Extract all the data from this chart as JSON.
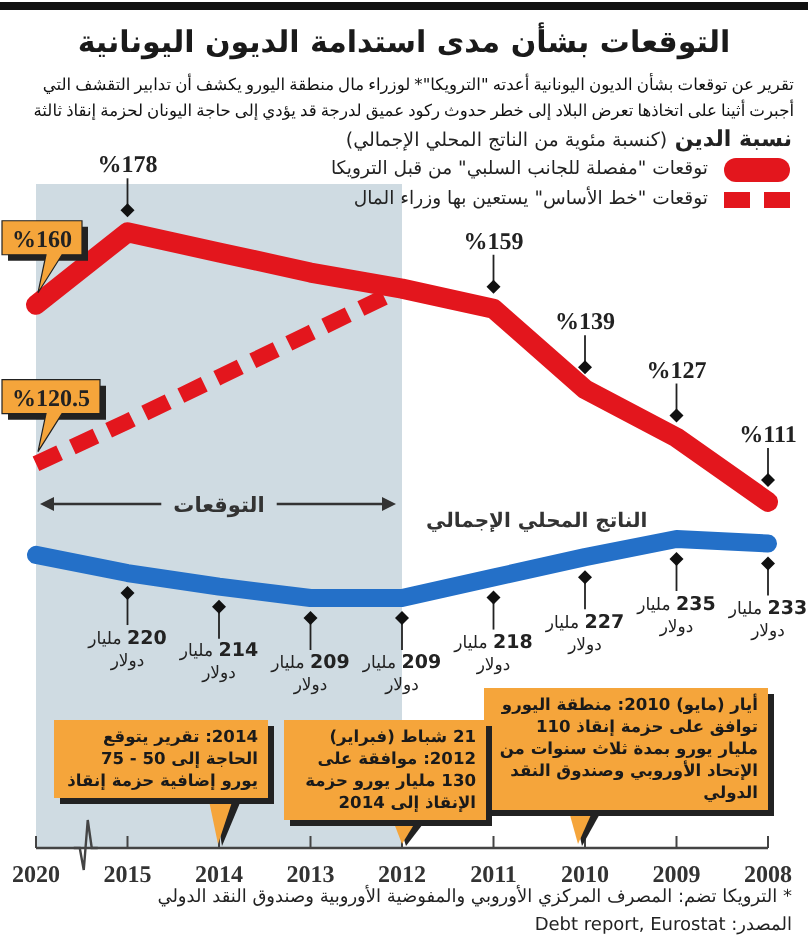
{
  "chart_data": {
    "type": "line",
    "title": "التوقعات بشأن مدى استدامة الديون اليونانية",
    "subtitle": "تقرير عن توقعات بشأن الديون اليونانية أعدته \"الترويكا\"* لوزراء مال منطقة اليورو يكشف أن تدابير التقشف التي أجبرت أثينا على اتخاذها تعرض البلاد إلى خطر حدوث ركود عميق لدرجة قد يؤدي إلى حاجة اليونان لحزمة إنقاذ ثالثة",
    "legend_title": "نسبة الدين (كنسبة مئوية من الناتج المحلي الإجمالي)",
    "categories": [
      "2020",
      "2015",
      "2014",
      "2013",
      "2012",
      "2011",
      "2010",
      "2009",
      "2008"
    ],
    "ylim": [
      25,
      190
    ],
    "series": [
      {
        "name": "توقعات \"مفصلة للجانب السلبي\" من قبل الترويكا",
        "color": "#e3161d",
        "values": [
          160,
          178,
          173,
          168,
          164,
          159,
          139,
          127,
          111
        ],
        "value_labels": [
          "%160",
          "%178",
          null,
          null,
          null,
          "%159",
          "%139",
          "%127",
          "%111"
        ]
      },
      {
        "name": "توقعات \"خط الأساس\" يستعين بها وزراء المال",
        "color": "#e3161d",
        "line_style": "dashed",
        "values": [
          120.5,
          131,
          142,
          153,
          164,
          null,
          null,
          null,
          null
        ],
        "value_labels": [
          "%120.5",
          null,
          null,
          null,
          null,
          null,
          null,
          null,
          null
        ]
      },
      {
        "name": "الناتج المحلي الإجمالي",
        "color": "#2470c8",
        "axis": "y2",
        "values": [
          228,
          220,
          214,
          209,
          209,
          218,
          227,
          235,
          233
        ],
        "value_labels": [
          null,
          "220 مليار دولار",
          "214 مليار دولار",
          "209 مليار دولار",
          "209 مليار دولار",
          "218 مليار دولار",
          "227 مليار دولار",
          "235 مليار دولار",
          "233 مليار دولار"
        ]
      }
    ],
    "bands": [
      {
        "axis": "x",
        "from": "2020",
        "to": "2012",
        "label": "التوقعات",
        "color": "#cfdbe2"
      }
    ],
    "annotations": [
      "أيار (مايو) 2010: منطقة اليورو توافق على حزمة إنقاذ 110 مليار يورو بمدة ثلاث سنوات من الإتحاد الأوروبي وصندوق النقد الدولي",
      {
        "text": "21 شباط (فبراير) 2012: موافقة على 130 مليار يورو حزمة الإنقاذ إلى 2014",
        "x": "2012"
      },
      "2014: تقرير يتوقع الحاجة إلى 50 - 75 يورو إضافية حزمة إنقاذ",
      "* الترويكا تضم: المصرف المركزي الأوروبي والمفوضية الأوروبية وصندوق النقد الدولي",
      "المصدر: Debt report, Eurostat"
    ],
    "legend": "top right",
    "tick_labels": "x"
  }
}
